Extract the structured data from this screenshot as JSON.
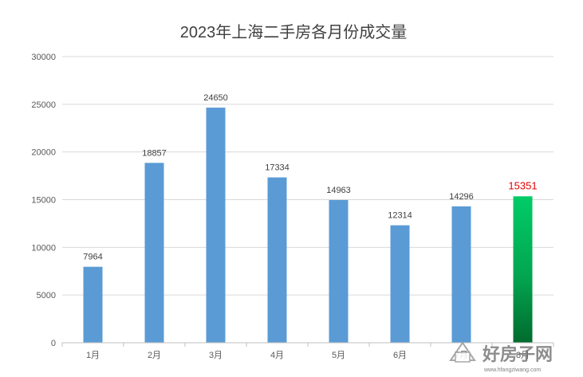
{
  "chart_data": {
    "type": "bar",
    "title": "2023年上海二手房各月份成交量",
    "categories": [
      "1月",
      "2月",
      "3月",
      "4月",
      "5月",
      "6月",
      "7月",
      "8月"
    ],
    "values": [
      7964,
      18857,
      24650,
      17334,
      14963,
      12314,
      14296,
      15351
    ],
    "data_labels": [
      "7964",
      "18857",
      "24650",
      "17334",
      "14963",
      "12314",
      "14296",
      "15351"
    ],
    "ylim": [
      0,
      30000
    ],
    "y_ticks": [
      "0",
      "5000",
      "10000",
      "15000",
      "20000",
      "25000",
      "30000"
    ],
    "y_tick_values": [
      0,
      5000,
      10000,
      15000,
      20000,
      25000,
      30000
    ],
    "grid": true,
    "legend": "none",
    "colors": {
      "bar": "#5b9bd5",
      "highlight_bar_top": "#00cc66",
      "highlight_bar_bottom": "#006b2e",
      "highlight_label": "#e00000"
    },
    "highlight_index": 7
  },
  "watermark": {
    "text": "好房子网",
    "url": "www.hfangziwang.com"
  }
}
